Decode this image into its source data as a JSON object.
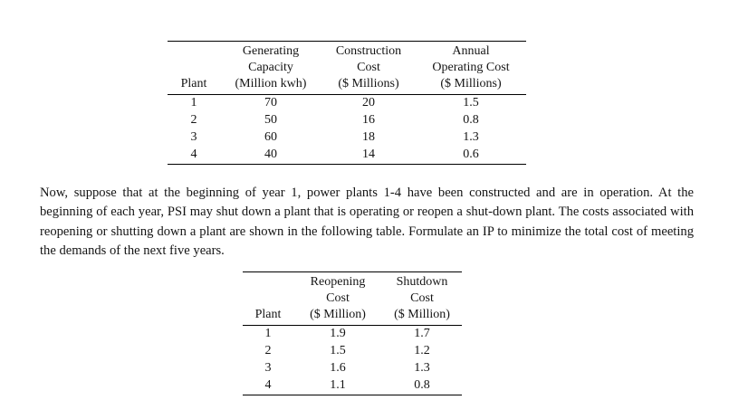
{
  "table1": {
    "header": {
      "plant": "Plant",
      "capacity": [
        "Generating",
        "Capacity",
        "(Million kwh)"
      ],
      "construction": [
        "Construction",
        "Cost",
        "($ Millions)"
      ],
      "operating": [
        "Annual",
        "Operating Cost",
        "($ Millions)"
      ]
    },
    "rows": [
      [
        "1",
        "70",
        "20",
        "1.5"
      ],
      [
        "2",
        "50",
        "16",
        "0.8"
      ],
      [
        "3",
        "60",
        "18",
        "1.3"
      ],
      [
        "4",
        "40",
        "14",
        "0.6"
      ]
    ]
  },
  "paragraph": "Now, suppose that at the beginning of year 1, power plants 1-4 have been constructed and are in operation.  At the beginning of each year, PSI may shut down a plant that is operating or reopen a shut-down plant.  The costs associated with reopening or shutting down a plant are shown in the following table.  Formulate an IP to minimize the total cost of meeting the demands of the next five years.",
  "table2": {
    "header": {
      "plant": "Plant",
      "reopening": [
        "Reopening",
        "Cost",
        "($ Million)"
      ],
      "shutdown": [
        "Shutdown",
        "Cost",
        "($ Million)"
      ]
    },
    "rows": [
      [
        "1",
        "1.9",
        "1.7"
      ],
      [
        "2",
        "1.5",
        "1.2"
      ],
      [
        "3",
        "1.6",
        "1.3"
      ],
      [
        "4",
        "1.1",
        "0.8"
      ]
    ]
  }
}
